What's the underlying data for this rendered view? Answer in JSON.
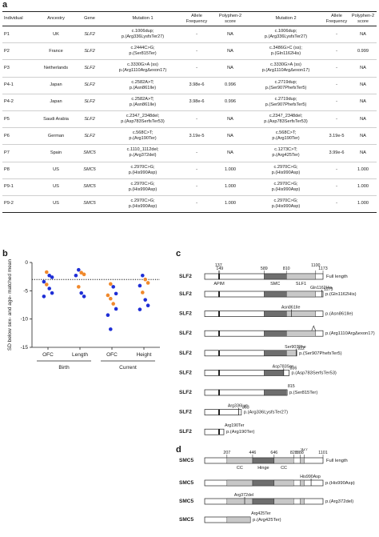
{
  "panel_labels": {
    "a": "a",
    "b": "b",
    "c": "c",
    "d": "d"
  },
  "table": {
    "headers": [
      "Individual",
      "Ancestry",
      "Gene",
      "Mutation 1",
      "Allele Frequency",
      "Polyphen-2 score",
      "Mutation 2",
      "Allele Frequency",
      "Polyphen-2 score"
    ],
    "rows": [
      {
        "ind": "P1",
        "anc": "UK",
        "gene": "SLF2",
        "m1a": "c.1006dup;",
        "m1b": "p.(Arg336LysfsTer27)",
        "af1": "-",
        "pp1": "NA",
        "m2a": "c.1006dup;",
        "m2b": "p.(Arg336LysfsTer27)",
        "af2": "-",
        "pp2": "NA"
      },
      {
        "ind": "P2",
        "anc": "France",
        "gene": "SLF2",
        "m1a": "c.2444C>G;",
        "m1b": "p.(Ser815Ter)",
        "af1": "-",
        "pp1": "NA",
        "m2a": "c.3486G>C (ss);",
        "m2b": "p.(Gln1162His)",
        "af2": "-",
        "pp2": "0.999"
      },
      {
        "ind": "P3",
        "anc": "Netherlands",
        "gene": "SLF2",
        "m1a": "c.3330G>A (ss)",
        "m1b": "p.(Arg1110ArgΔexon17)",
        "af1": "-",
        "pp1": "NA",
        "m2a": "c.3330G>A (ss)",
        "m2b": "p.(Arg1110ArgΔexon17)",
        "af2": "-",
        "pp2": "NA"
      },
      {
        "ind": "P4-1",
        "anc": "Japan",
        "gene": "SLF2",
        "m1a": "c.2582A>T;",
        "m1b": "p.(Asn861Ile)",
        "af1": "3.98e-6",
        "pp1": "0.996",
        "m2a": "c.2719dup;",
        "m2b": "p.(Ser907PhefsTer5)",
        "af2": "-",
        "pp2": "NA"
      },
      {
        "ind": "P4-2",
        "anc": "Japan",
        "gene": "SLF2",
        "m1a": "c.2582A>T;",
        "m1b": "p.(Asn861Ile)",
        "af1": "3.98e-6",
        "pp1": "0.996",
        "m2a": "c.2719dup;",
        "m2b": "p.(Ser907PhefsTer5)",
        "af2": "-",
        "pp2": "NA"
      },
      {
        "ind": "P5",
        "anc": "Saudi Arabia",
        "gene": "SLF2",
        "m1a": "c.2347_2348del;",
        "m1b": "p.(Asp783SerfsTer53)",
        "af1": "-",
        "pp1": "NA",
        "m2a": "c.2347_2348del;",
        "m2b": "p.(Asp783SerfsTer53)",
        "af2": "-",
        "pp2": "NA"
      },
      {
        "ind": "P6",
        "anc": "German",
        "gene": "SLF2",
        "m1a": "c.568C>T;",
        "m1b": "p.(Arg190Ter)",
        "af1": "3.19e-5",
        "pp1": "NA",
        "m2a": "c.568C>T;",
        "m2b": "p.(Arg190Ter)",
        "af2": "3.19e-5",
        "pp2": "NA"
      },
      {
        "ind": "P7",
        "anc": "Spain",
        "gene": "SMC5",
        "m1a": "c.1110_1112del;",
        "m1b": "p.(Arg372del)",
        "af1": "-",
        "pp1": "NA",
        "m2a": "c.1273C>T;",
        "m2b": "p.(Arg425Ter)",
        "af2": "3.99e-6",
        "pp2": "NA"
      },
      {
        "ind": "P8",
        "anc": "US",
        "gene": "SMC5",
        "m1a": "c.2970C>G;",
        "m1b": "p.(His990Asp)",
        "af1": "-",
        "pp1": "1.000",
        "m2a": "c.2970C>G;",
        "m2b": "p.(His990Asp)",
        "af2": "-",
        "pp2": "1.000"
      },
      {
        "ind": "P9-1",
        "anc": "US",
        "gene": "SMC5",
        "m1a": "c.2970C>G;",
        "m1b": "p.(His990Asp)",
        "af1": "-",
        "pp1": "1.000",
        "m2a": "c.2970C>G;",
        "m2b": "p.(His990Asp)",
        "af2": "-",
        "pp2": "1.000"
      },
      {
        "ind": "P9-2",
        "anc": "US",
        "gene": "SMC5",
        "m1a": "c.2970C>G;",
        "m1b": "p.(His990Asp)",
        "af1": "-",
        "pp1": "1.000",
        "m2a": "c.2970C>G;",
        "m2b": "p.(His990Asp)",
        "af2": "-",
        "pp2": "1.000"
      }
    ]
  },
  "chart_data": {
    "type": "scatter",
    "ylabel": "SD below sex- and age- matched mean",
    "ylim": [
      -15,
      0
    ],
    "yticks": [
      "0",
      "-5",
      "-10",
      "-15"
    ],
    "categories": [
      "OFC",
      "Length",
      "OFC",
      "Height"
    ],
    "groups": [
      {
        "label": "Birth",
        "span": [
          0,
          1
        ]
      },
      {
        "label": "Current",
        "span": [
          2,
          3
        ]
      }
    ],
    "reference_line": -3,
    "colors": {
      "blue": "#1f2fd6",
      "orange": "#f0892c"
    },
    "points": [
      {
        "cat": 0,
        "y": -1.7,
        "c": "orange"
      },
      {
        "cat": 0,
        "y": -2.3,
        "c": "blue"
      },
      {
        "cat": 0,
        "y": -2.6,
        "c": "blue"
      },
      {
        "cat": 0,
        "y": -3.4,
        "c": "blue"
      },
      {
        "cat": 0,
        "y": -3.9,
        "c": "orange"
      },
      {
        "cat": 0,
        "y": -4.6,
        "c": "blue"
      },
      {
        "cat": 0,
        "y": -5.4,
        "c": "blue"
      },
      {
        "cat": 0,
        "y": -6.0,
        "c": "blue"
      },
      {
        "cat": 1,
        "y": -1.3,
        "c": "blue"
      },
      {
        "cat": 1,
        "y": -1.8,
        "c": "orange"
      },
      {
        "cat": 1,
        "y": -2.1,
        "c": "orange"
      },
      {
        "cat": 1,
        "y": -2.3,
        "c": "blue"
      },
      {
        "cat": 1,
        "y": -4.3,
        "c": "orange"
      },
      {
        "cat": 1,
        "y": -5.4,
        "c": "blue"
      },
      {
        "cat": 1,
        "y": -6.0,
        "c": "blue"
      },
      {
        "cat": 2,
        "y": -3.8,
        "c": "orange"
      },
      {
        "cat": 2,
        "y": -4.3,
        "c": "blue"
      },
      {
        "cat": 2,
        "y": -5.5,
        "c": "blue"
      },
      {
        "cat": 2,
        "y": -5.8,
        "c": "orange"
      },
      {
        "cat": 2,
        "y": -6.4,
        "c": "orange"
      },
      {
        "cat": 2,
        "y": -7.3,
        "c": "orange"
      },
      {
        "cat": 2,
        "y": -8.2,
        "c": "blue"
      },
      {
        "cat": 2,
        "y": -9.3,
        "c": "blue"
      },
      {
        "cat": 2,
        "y": -11.8,
        "c": "blue"
      },
      {
        "cat": 3,
        "y": -2.3,
        "c": "blue"
      },
      {
        "cat": 3,
        "y": -3.0,
        "c": "orange"
      },
      {
        "cat": 3,
        "y": -3.6,
        "c": "orange"
      },
      {
        "cat": 3,
        "y": -4.1,
        "c": "blue"
      },
      {
        "cat": 3,
        "y": -5.3,
        "c": "orange"
      },
      {
        "cat": 3,
        "y": -6.6,
        "c": "blue"
      },
      {
        "cat": 3,
        "y": -7.6,
        "c": "blue"
      },
      {
        "cat": 3,
        "y": -8.3,
        "c": "blue"
      }
    ]
  },
  "slf2": {
    "name": "SLF2",
    "full_length": 1173,
    "positions": [
      "137",
      "149",
      "589",
      "810",
      "1100",
      "1173"
    ],
    "domains": [
      {
        "label": "APIM",
        "start": 137,
        "end": 149,
        "color": "#111111"
      },
      {
        "label": "SMC",
        "start": 589,
        "end": 810,
        "color": "#6e6e6e"
      },
      {
        "label": "SLF1",
        "start": 810,
        "end": 1100,
        "color": "#c8c8c8"
      }
    ],
    "full_length_label": "Full length",
    "variants": [
      {
        "label": "p.(Gln1162His)",
        "top": "Gln1162His",
        "top2": "1173",
        "end": 1173,
        "mark": 1162,
        "kind": "mis"
      },
      {
        "label": "p.(Asn861Ile)",
        "top": "Asn861Ile",
        "top2": "",
        "end": 1173,
        "mark": 861,
        "kind": "mis"
      },
      {
        "label": "p.(Arg1110ArgΔexon17)",
        "top": "",
        "top2": "",
        "end": 1173,
        "mark": 1110,
        "kind": "skip"
      },
      {
        "label": "p.(Ser907PhefsTer5)",
        "top": "Ser907Phe",
        "top2": "912",
        "end": 912,
        "mark": 907,
        "kind": "fs"
      },
      {
        "label": "p.(Asp783SerfsTer53)",
        "top": "Asp783Ser",
        "top2": "836",
        "end": 836,
        "mark": 783,
        "kind": "fs"
      },
      {
        "label": "p.(Ser815Ter)",
        "top": "815",
        "top2": "",
        "end": 815,
        "mark": 815,
        "kind": "stop"
      },
      {
        "label": "p.(Arg336LysfsTer27)",
        "top": "Arg336Lys",
        "top2": "363",
        "end": 363,
        "mark": 336,
        "kind": "fs"
      },
      {
        "label": "p.(Arg190Ter)",
        "top": "Arg190Ter",
        "top2": "",
        "end": 190,
        "mark": 190,
        "kind": "stop"
      }
    ]
  },
  "smc5": {
    "name": "SMC5",
    "full_length": 1101,
    "positions": [
      "207",
      "446",
      "646",
      "828",
      "888",
      "927",
      "1101"
    ],
    "domains": [
      {
        "label": "CC",
        "start": 207,
        "end": 446,
        "color": "#c8c8c8"
      },
      {
        "label": "Hinge",
        "start": 446,
        "end": 646,
        "color": "#6e6e6e"
      },
      {
        "label": "CC",
        "start": 646,
        "end": 828,
        "color": "#c8c8c8"
      },
      {
        "label": "",
        "start": 888,
        "end": 927,
        "color": "#c8c8c8"
      }
    ],
    "full_length_label": "Full length",
    "variants": [
      {
        "label": "p.(His990Asp)",
        "top": "His990Asp",
        "end": 1101,
        "mark": 990,
        "kind": "mis"
      },
      {
        "label": "p.(Arg372del)",
        "top": "Arg372del",
        "end": 1101,
        "mark": 372,
        "kind": "mis"
      },
      {
        "label": "p.(Arg425Ter)",
        "top": "Arg425Ter",
        "end": 425,
        "mark": 425,
        "kind": "stop"
      }
    ]
  }
}
